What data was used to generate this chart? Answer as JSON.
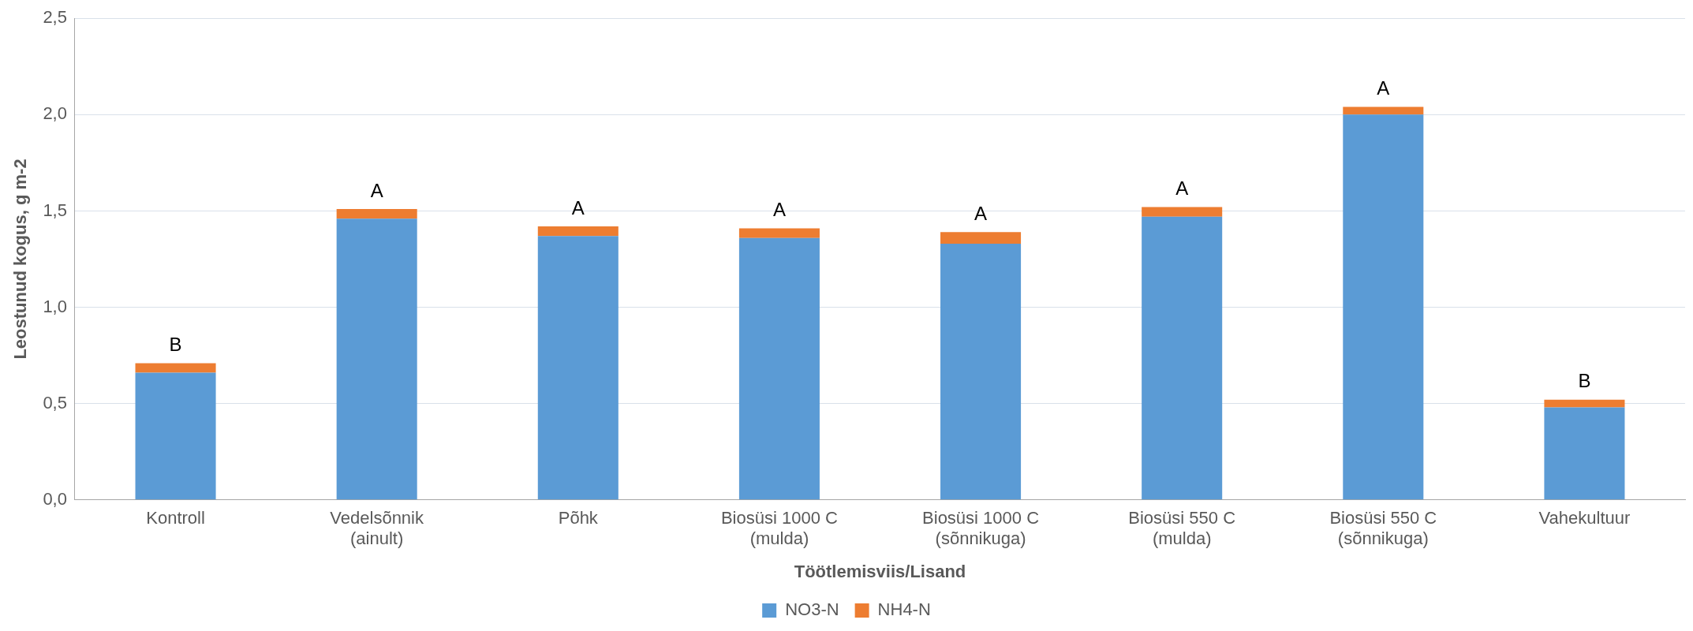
{
  "chart_data": {
    "type": "bar",
    "stacked": true,
    "xlabel": "Töötlemisviis/Lisand",
    "ylabel": "Leostunud kogus, g m-2",
    "categories": [
      "Kontroll",
      "Vedelsõnnik\n(ainult)",
      "Põhk",
      "Biosüsi 1000 C\n(mulda)",
      "Biosüsi 1000 C\n(sõnnikuga)",
      "Biosüsi 550 C\n(mulda)",
      "Biosüsi 550 C\n(sõnnikuga)",
      "Vahekultuur"
    ],
    "series": [
      {
        "name": "NO3-N",
        "color": "#5b9bd5",
        "values": [
          0.66,
          1.46,
          1.37,
          1.36,
          1.33,
          1.47,
          2.0,
          0.48
        ]
      },
      {
        "name": "NH4-N",
        "color": "#ed7d31",
        "values": [
          0.05,
          0.05,
          0.05,
          0.05,
          0.06,
          0.05,
          0.04,
          0.04
        ]
      }
    ],
    "ylim": [
      0,
      2.5
    ],
    "yticks": [
      {
        "value": 0,
        "label": "0,0"
      },
      {
        "value": 0.5,
        "label": "0,5"
      },
      {
        "value": 1,
        "label": "1,0"
      },
      {
        "value": 1.5,
        "label": "1,5"
      },
      {
        "value": 2,
        "label": "2,0"
      },
      {
        "value": 2.5,
        "label": "2,5"
      }
    ],
    "grid": "y",
    "legend": "bottom",
    "annotations": [
      {
        "text": "B",
        "x": "Kontroll",
        "y": 0.71
      },
      {
        "text": "A",
        "x": "Vedelsõnnik\n(ainult)",
        "y": 1.51
      },
      {
        "text": "A",
        "x": "Põhk",
        "y": 1.42
      },
      {
        "text": "A",
        "x": "Biosüsi 1000 C\n(mulda)",
        "y": 1.41
      },
      {
        "text": "A",
        "x": "Biosüsi 1000 C\n(sõnnikuga)",
        "y": 1.39
      },
      {
        "text": "A",
        "x": "Biosüsi 550 C\n(mulda)",
        "y": 1.52
      },
      {
        "text": "A",
        "x": "Biosüsi 550 C\n(sõnnikuga)",
        "y": 2.04
      },
      {
        "text": "B",
        "x": "Vahekultuur",
        "y": 0.52
      }
    ]
  }
}
